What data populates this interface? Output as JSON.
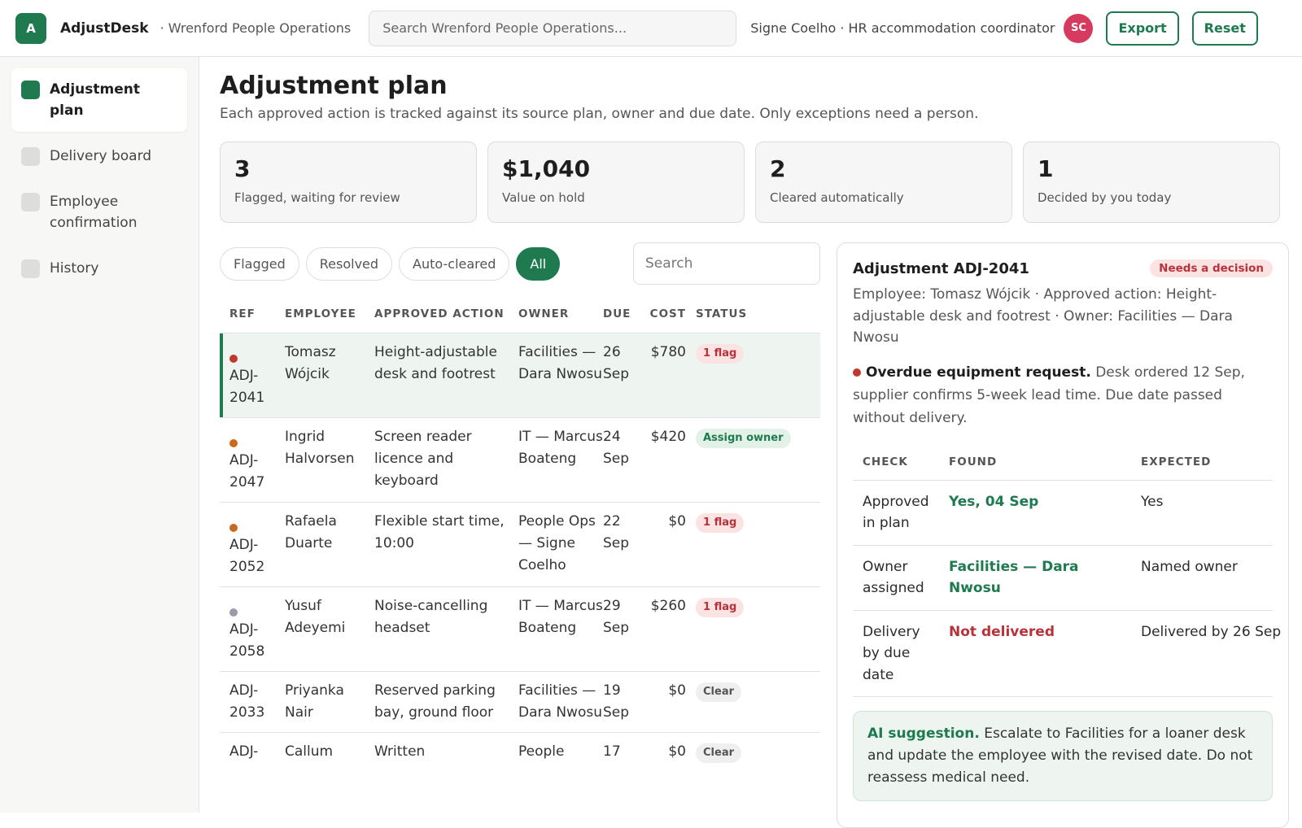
{
  "header": {
    "logo": "A",
    "app_name": "AdjustDesk",
    "org": "· Wrenford People Operations",
    "search_placeholder": "Search Wrenford People Operations...",
    "user": "Signe Coelho · HR accommodation coordinator",
    "avatar": "SC",
    "buttons": [
      "Export",
      "Reset"
    ]
  },
  "sidebar": {
    "items": [
      "Adjustment plan",
      "Delivery board",
      "Employee confirmation",
      "History"
    ],
    "active": 0
  },
  "page": {
    "title": "Adjustment plan",
    "subtitle": "Each approved action is tracked against its source plan, owner and due date. Only exceptions need a person."
  },
  "stats": [
    {
      "value": "3",
      "label": "Flagged, waiting for review"
    },
    {
      "value": "$1,040",
      "label": "Value on hold"
    },
    {
      "value": "2",
      "label": "Cleared automatically"
    },
    {
      "value": "1",
      "label": "Decided by you today"
    }
  ],
  "filters": {
    "items": [
      "Flagged",
      "Resolved",
      "Auto-cleared",
      "All"
    ],
    "active": 3,
    "search_placeholder": "Search"
  },
  "table": {
    "columns": [
      "REF",
      "EMPLOYEE",
      "APPROVED ACTION",
      "OWNER",
      "DUE",
      "COST",
      "STATUS"
    ],
    "selected": 0,
    "rows": [
      {
        "ref": "ADJ-2041",
        "employee": "Tomasz Wójcik",
        "action": "Height-adjustable desk and footrest",
        "owner": "Facilities — Dara Nwosu",
        "due": "26 Sep",
        "cost": "$780",
        "status": "1 flag",
        "dot": "#c0392b",
        "tone": "red"
      },
      {
        "ref": "ADJ-2047",
        "employee": "Ingrid Halvorsen",
        "action": "Screen reader licence and keyboard",
        "owner": "IT — Marcus Boateng",
        "due": "24 Sep",
        "cost": "$420",
        "status": "Assign owner",
        "dot": "#c8691c",
        "tone": "green"
      },
      {
        "ref": "ADJ-2052",
        "employee": "Rafaela Duarte",
        "action": "Flexible start time, 10:00",
        "owner": "People Ops — Signe Coelho",
        "due": "22 Sep",
        "cost": "$0",
        "status": "1 flag",
        "dot": "#c8691c",
        "tone": "red"
      },
      {
        "ref": "ADJ-2058",
        "employee": "Yusuf Adeyemi",
        "action": "Noise-cancelling headset",
        "owner": "IT — Marcus Boateng",
        "due": "29 Sep",
        "cost": "$260",
        "status": "1 flag",
        "dot": "#9a9aa8",
        "tone": "red"
      },
      {
        "ref": "ADJ-2033",
        "employee": "Priyanka Nair",
        "action": "Reserved parking bay, ground floor",
        "owner": "Facilities — Dara Nwosu",
        "due": "19 Sep",
        "cost": "$0",
        "status": "Clear",
        "dot": null,
        "tone": "grey"
      },
      {
        "ref": "ADJ-",
        "employee": "Callum",
        "action": "Written",
        "owner": "People",
        "due": "17",
        "cost": "$0",
        "status": "Clear",
        "dot": null,
        "tone": "grey"
      }
    ]
  },
  "detail": {
    "title": "Adjustment ADJ-2041",
    "badge": "Needs a decision",
    "meta": "Employee: Tomasz Wójcik · Approved action: Height-adjustable desk and footrest · Owner: Facilities — Dara Nwosu",
    "alert_title": "Overdue equipment request.",
    "alert_text": "Desk ordered 12 Sep, supplier confirms 5-week lead time. Due date passed without delivery.",
    "checks": {
      "columns": [
        "CHECK",
        "FOUND",
        "EXPECTED"
      ],
      "rows": [
        {
          "check": "Approved in plan",
          "found": "Yes, 04 Sep",
          "expected": "Yes",
          "tone": "green"
        },
        {
          "check": "Owner assigned",
          "found": "Facilities — Dara Nwosu",
          "expected": "Named owner",
          "tone": "green"
        },
        {
          "check": "Delivery by due date",
          "found": "Not delivered",
          "expected": "Delivered by 26 Sep",
          "tone": "red"
        }
      ]
    },
    "suggestion_label": "AI suggestion.",
    "suggestion_text": "Escalate to Facilities for a loaner desk and update the employee with the revised date. Do not reassess medical need."
  }
}
